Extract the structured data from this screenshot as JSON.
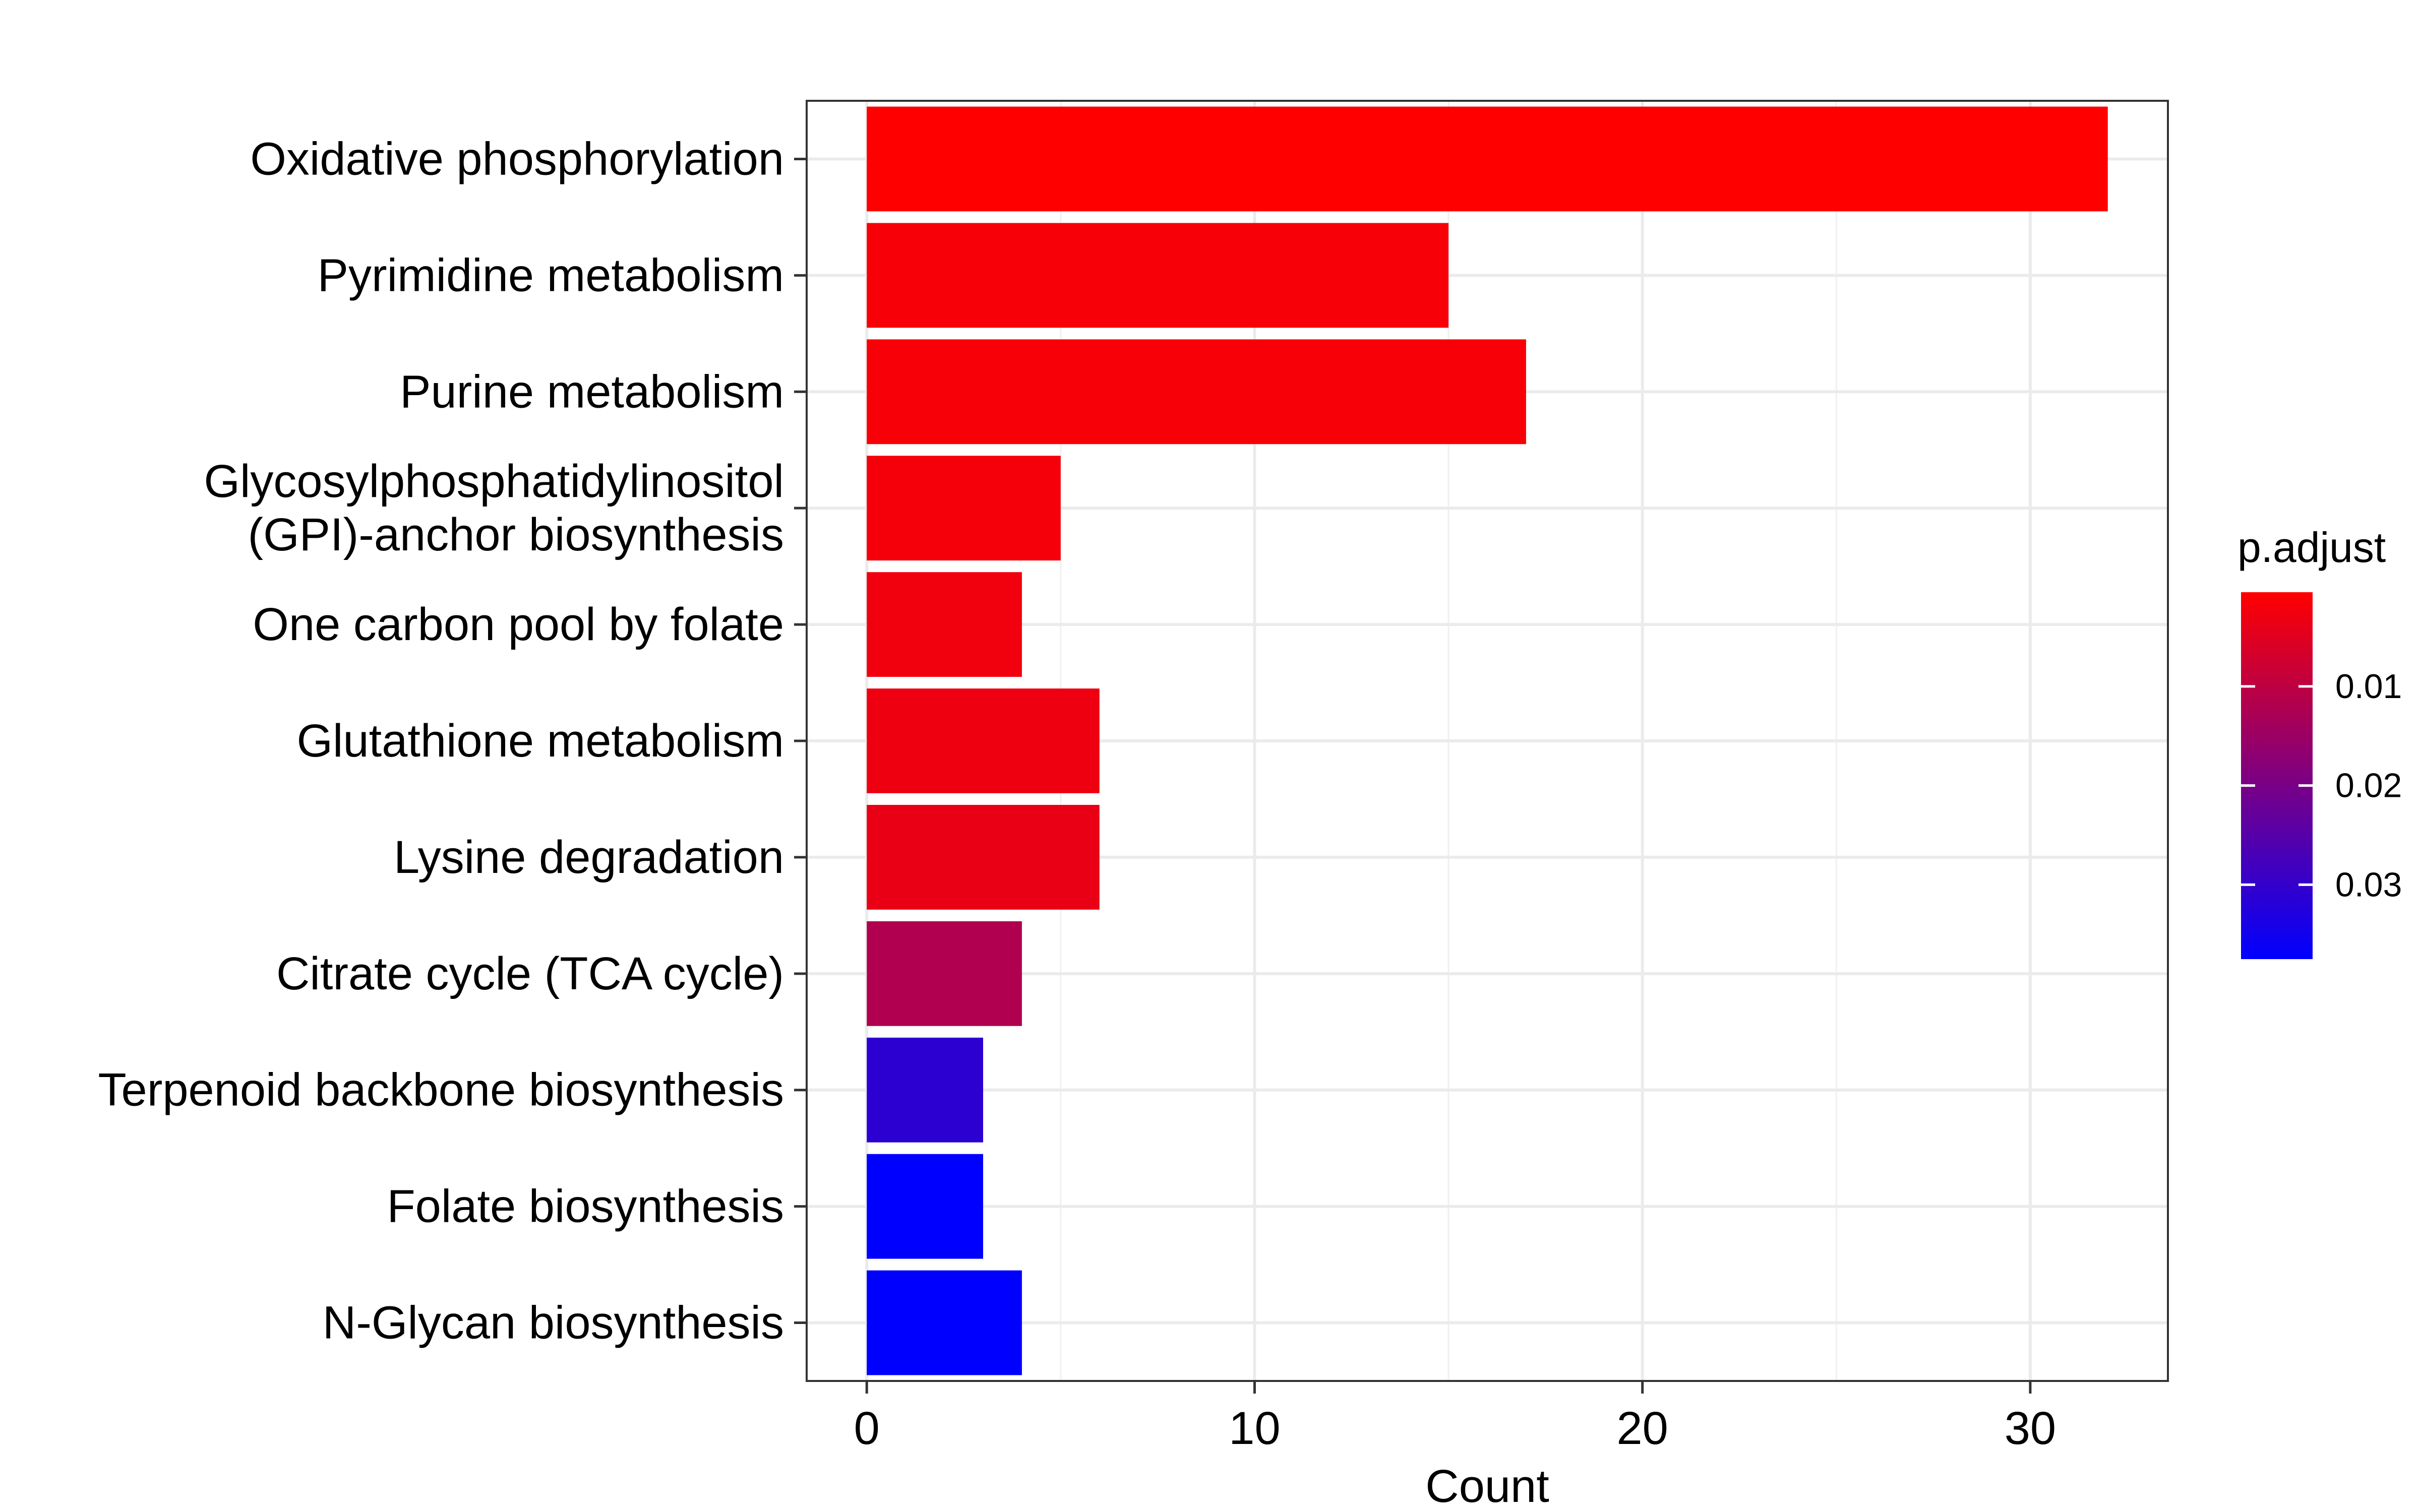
{
  "chart_data": {
    "type": "bar",
    "orientation": "horizontal",
    "categories": [
      [
        "Oxidative phosphorylation"
      ],
      [
        "Pyrimidine metabolism"
      ],
      [
        "Purine metabolism"
      ],
      [
        "Glycosylphosphatidylinositol",
        "(GPI)-anchor biosynthesis"
      ],
      [
        "One carbon pool by folate"
      ],
      [
        "Glutathione metabolism"
      ],
      [
        "Lysine degradation"
      ],
      [
        "Citrate cycle (TCA cycle)"
      ],
      [
        "Terpenoid backbone biosynthesis"
      ],
      [
        "Folate biosynthesis"
      ],
      [
        "N-Glycan biosynthesis"
      ]
    ],
    "values": [
      32,
      15,
      17,
      5,
      4,
      6,
      6,
      4,
      3,
      3,
      4
    ],
    "p_adjust": [
      0.0005,
      0.0015,
      0.0015,
      0.002,
      0.0025,
      0.003,
      0.0035,
      0.012,
      0.031,
      0.0375,
      0.0375
    ],
    "xlabel": "Count",
    "xlim": [
      -1.55,
      33.55
    ],
    "xticks": [
      0,
      10,
      20,
      30
    ],
    "grid": true,
    "color_scale": {
      "title": "p.adjust",
      "low_color": "#FF0000",
      "high_color": "#0000FF",
      "domain": [
        0.0005,
        0.0375
      ],
      "ticks": [
        0.01,
        0.02,
        0.03
      ],
      "tick_labels": [
        "0.01",
        "0.02",
        "0.03"
      ],
      "placement": "right"
    }
  }
}
